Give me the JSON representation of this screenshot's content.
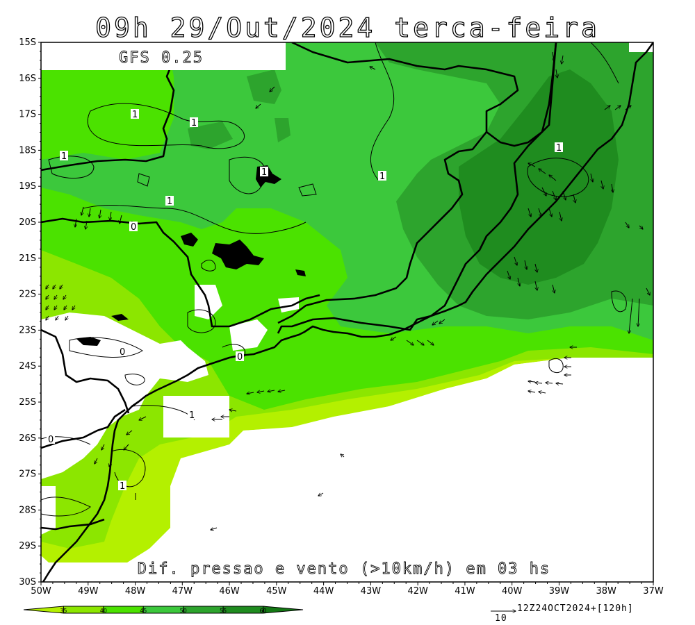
{
  "title": "09h 29/Out/2024 terca-feira",
  "model_label": "GFS 0.25",
  "bottom_caption": "Dif. pressao e vento (>10km/h) em 03 hs",
  "run_info": "12Z24OCT2024+[120h]",
  "vector_reference": "10",
  "lat_labels": [
    "15S",
    "16S",
    "17S",
    "18S",
    "19S",
    "20S",
    "21S",
    "22S",
    "23S",
    "24S",
    "25S",
    "26S",
    "27S",
    "28S",
    "29S",
    "30S"
  ],
  "lon_labels": [
    "50W",
    "49W",
    "48W",
    "47W",
    "46W",
    "45W",
    "44W",
    "43W",
    "42W",
    "41W",
    "40W",
    "39W",
    "38W",
    "37W"
  ],
  "colorbar": {
    "labels": [
      "35",
      "40",
      "45",
      "50",
      "55",
      "60"
    ],
    "colors": [
      "#b4f000",
      "#8ce600",
      "#4be200",
      "#3cc83c",
      "#2da42d",
      "#1f8c1f",
      "#147814"
    ]
  },
  "contour_labels": [
    "1",
    "1",
    "1",
    "1",
    "1",
    "1",
    "0",
    "0",
    "0",
    "0",
    "1",
    "1",
    "1"
  ]
}
